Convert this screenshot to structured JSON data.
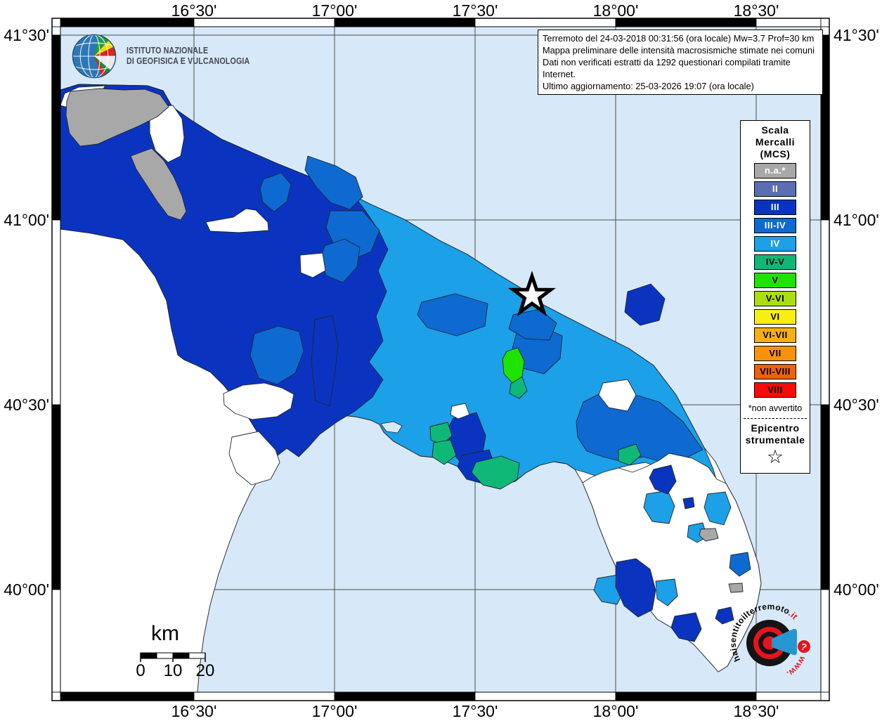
{
  "branding": {
    "line1": "ISTITUTO NAZIONALE",
    "line2": "DI GEOFISICA E VULCANOLOGIA"
  },
  "info_box": {
    "lines": [
      "Terremoto del 24-03-2018 00:31:56 (ora locale) Mw=3.7 Prof=30 km",
      "Mappa preliminare delle intensità macrosismiche stimate nei comuni",
      "Dati non verificati estratti da 1292 questionari compilati tramite Internet.",
      "Ultimo aggiornamento: 25-03-2026 19:07 (ora locale)"
    ]
  },
  "axes": {
    "lon": [
      "16°30'",
      "17°00'",
      "17°30'",
      "18°00'",
      "18°30'"
    ],
    "lat": [
      "41°30'",
      "41°00'",
      "40°30'",
      "40°00'"
    ]
  },
  "legend": {
    "title_lines": [
      "Scala",
      "Mercalli",
      "(MCS)"
    ],
    "items": [
      {
        "label": "n.a.*",
        "color": "#a8a8a8",
        "text_color": "#ffffff"
      },
      {
        "label": "II",
        "color": "#5a6fb2",
        "text_color": "#ffffff"
      },
      {
        "label": "III",
        "color": "#0a34c0",
        "text_color": "#ffffff"
      },
      {
        "label": "III-IV",
        "color": "#0e6ad0",
        "text_color": "#ffffff"
      },
      {
        "label": "IV",
        "color": "#1ca0e8",
        "text_color": "#ffffff"
      },
      {
        "label": "IV-V",
        "color": "#10b878",
        "text_color": "#000000"
      },
      {
        "label": "V",
        "color": "#1ee300",
        "text_color": "#000000"
      },
      {
        "label": "V-VI",
        "color": "#aadf0d",
        "text_color": "#000000"
      },
      {
        "label": "VI",
        "color": "#f8ee12",
        "text_color": "#000000"
      },
      {
        "label": "VI-VII",
        "color": "#f6b011",
        "text_color": "#000000"
      },
      {
        "label": "VII",
        "color": "#f7930a",
        "text_color": "#000000"
      },
      {
        "label": "VII-VIII",
        "color": "#ef6109",
        "text_color": "#000000"
      },
      {
        "label": "VIII",
        "color": "#f90909",
        "text_color": "#000000"
      }
    ],
    "footnote": "*non avvertito",
    "epicenter_lines": [
      "Epicentro",
      "strumentale"
    ],
    "epicenter_symbol": "☆"
  },
  "scale_bar": {
    "unit": "km",
    "ticks": [
      "0",
      "10",
      "20"
    ]
  },
  "watermark": {
    "prefix_red": "www.",
    "main": "haisentitoilterremoto",
    "suffix_red": ".it",
    "question_mark": "?"
  },
  "map": {
    "sea_color": "#d7e9f8",
    "no_data_color": "#ffffff",
    "grid_color": "#4a4a4a"
  }
}
